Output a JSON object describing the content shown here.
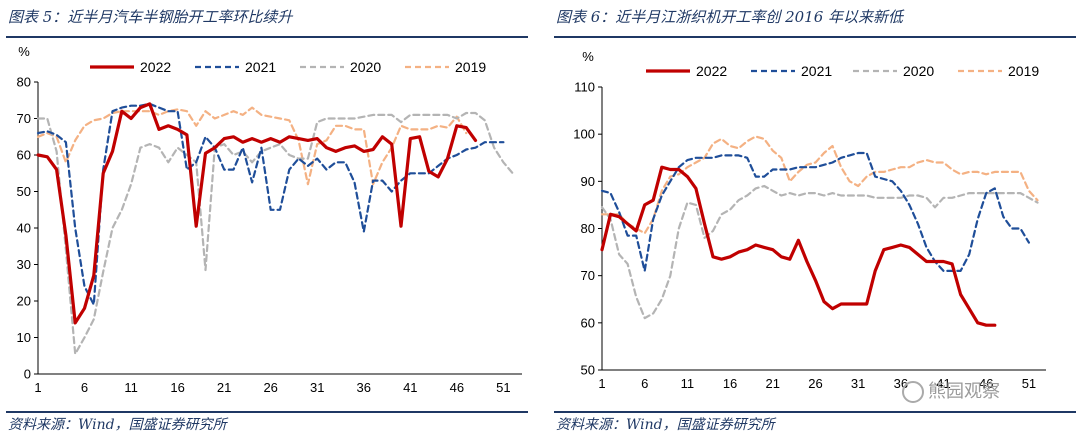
{
  "watermark": "熊园观察",
  "chart_data": [
    {
      "type": "line",
      "title": "图表 5：近半月汽车半钢胎开工率环比续升",
      "source": "资料来源：Wind，国盛证券研究所",
      "ylabel": "%",
      "ylim": [
        0,
        80
      ],
      "yticks": [
        0,
        10,
        20,
        30,
        40,
        50,
        60,
        70,
        80
      ],
      "xlim": [
        1,
        53
      ],
      "xticks": [
        1,
        6,
        11,
        16,
        21,
        26,
        31,
        36,
        41,
        46,
        51
      ],
      "series": [
        {
          "name": "2022",
          "color": "#c00000",
          "dash": "solid",
          "x": [
            1,
            2,
            3,
            4,
            5,
            6,
            7,
            8,
            9,
            10,
            11,
            12,
            13,
            14,
            15,
            16,
            17,
            18,
            19,
            20,
            21,
            22,
            23,
            24,
            25,
            26,
            27,
            28,
            29,
            30,
            31,
            32,
            33,
            34,
            35,
            36,
            37,
            38,
            39,
            40,
            41,
            42,
            43,
            44,
            45,
            46,
            47,
            48
          ],
          "y": [
            60,
            59.5,
            56,
            38,
            14,
            18,
            27,
            55,
            61,
            72,
            70,
            73,
            74,
            67,
            68,
            67,
            65.5,
            40.5,
            60.5,
            62,
            64.5,
            65,
            63.5,
            64.5,
            63.5,
            64.5,
            63.5,
            65,
            64.5,
            64,
            64.5,
            62,
            61,
            62,
            62.5,
            61,
            61.5,
            65,
            63,
            40.5,
            64.5,
            65,
            55.5,
            54,
            59,
            68,
            67.5,
            64
          ]
        },
        {
          "name": "2021",
          "color": "#1f4e99",
          "dash": "6,4",
          "x": [
            1,
            2,
            3,
            4,
            5,
            6,
            7,
            8,
            9,
            10,
            11,
            12,
            13,
            14,
            15,
            16,
            17,
            18,
            19,
            20,
            21,
            22,
            23,
            24,
            25,
            26,
            27,
            28,
            29,
            30,
            31,
            32,
            33,
            34,
            35,
            36,
            37,
            38,
            39,
            40,
            41,
            42,
            43,
            44,
            45,
            46,
            47,
            48,
            49,
            50,
            51
          ],
          "y": [
            66,
            66.5,
            65.5,
            63.5,
            40,
            24,
            19,
            56,
            72,
            73,
            73.5,
            73.5,
            74,
            73,
            72,
            72,
            56,
            58,
            65,
            62,
            56,
            56,
            62,
            52.5,
            62,
            45,
            45,
            56,
            59,
            57,
            59,
            56,
            58,
            58,
            52.5,
            39,
            53,
            53,
            50,
            53,
            55,
            55,
            55,
            57,
            59,
            60,
            61.5,
            62,
            63.5,
            63.5,
            63.5
          ]
        },
        {
          "name": "2020",
          "color": "#b4b4b4",
          "dash": "6,4",
          "x": [
            1,
            2,
            3,
            4,
            5,
            6,
            7,
            8,
            9,
            10,
            11,
            12,
            13,
            14,
            15,
            16,
            17,
            18,
            19,
            20,
            21,
            22,
            23,
            24,
            25,
            26,
            27,
            28,
            29,
            30,
            31,
            32,
            33,
            34,
            35,
            36,
            37,
            38,
            39,
            40,
            41,
            42,
            43,
            44,
            45,
            46,
            47,
            48,
            49,
            50,
            51,
            52
          ],
          "y": [
            70,
            70,
            61,
            34,
            5.5,
            10,
            15,
            28,
            40,
            45,
            52,
            62,
            63,
            62,
            58,
            62,
            60,
            58,
            28.5,
            62,
            63,
            60,
            61,
            58,
            61,
            62,
            63,
            60,
            59,
            59,
            69,
            70,
            70,
            70,
            70,
            70.5,
            71,
            71,
            71,
            69,
            71,
            71,
            71,
            71,
            71,
            70,
            71.5,
            71.5,
            69.5,
            62,
            58,
            55
          ]
        },
        {
          "name": "2019",
          "color": "#f4b183",
          "dash": "6,4",
          "x": [
            1,
            2,
            3,
            4,
            5,
            6,
            7,
            8,
            9,
            10,
            11,
            12,
            13,
            14,
            15,
            16,
            17,
            18,
            19,
            20,
            21,
            22,
            23,
            24,
            25,
            26,
            27,
            28,
            29,
            30,
            31,
            32,
            33,
            34,
            35,
            36,
            37,
            38,
            39,
            40,
            41,
            42,
            43,
            44,
            45,
            46,
            47
          ],
          "y": [
            65,
            66,
            65,
            58,
            64,
            68,
            69.5,
            70,
            71.5,
            72,
            72,
            72,
            72,
            71,
            72,
            72.5,
            72,
            68,
            72,
            70,
            71,
            72,
            71,
            73,
            71,
            70.5,
            70,
            69.5,
            64,
            52,
            63,
            64,
            68,
            68,
            67,
            67,
            52,
            58,
            62,
            68,
            67,
            67,
            67,
            68,
            67.5,
            70.5,
            66
          ]
        }
      ]
    },
    {
      "type": "line",
      "title": "图表 6：近半月江浙织机开工率创 2016 年以来新低",
      "source": "资料来源：Wind，国盛证券研究所",
      "ylabel": "%",
      "ylim": [
        50,
        110
      ],
      "yticks": [
        50,
        60,
        70,
        80,
        90,
        100,
        110
      ],
      "xlim": [
        1,
        53
      ],
      "xticks": [
        1,
        6,
        11,
        16,
        21,
        26,
        31,
        36,
        41,
        46,
        51
      ],
      "series": [
        {
          "name": "2022",
          "color": "#c00000",
          "dash": "solid",
          "x": [
            1,
            2,
            3,
            4,
            5,
            6,
            7,
            8,
            9,
            10,
            11,
            12,
            13,
            14,
            15,
            16,
            17,
            18,
            19,
            20,
            21,
            22,
            23,
            24,
            25,
            26,
            27,
            28,
            29,
            30,
            31,
            32,
            33,
            34,
            35,
            36,
            37,
            38,
            39,
            40,
            41,
            42,
            43,
            44,
            45,
            46,
            47
          ],
          "y": [
            75.5,
            83,
            82.5,
            81,
            79.5,
            85,
            86,
            93,
            92.5,
            92.5,
            91,
            88.5,
            81,
            74,
            73.5,
            74,
            75,
            75.5,
            76.5,
            76,
            75.5,
            74,
            73.5,
            77.5,
            73,
            69,
            64.5,
            63,
            64,
            64,
            64,
            64,
            71,
            75.5,
            76,
            76.5,
            76,
            74.5,
            73,
            73,
            73,
            72.5,
            66,
            63,
            60,
            59.5,
            59.5
          ]
        },
        {
          "name": "2021",
          "color": "#1f4e99",
          "dash": "6,4",
          "x": [
            1,
            2,
            3,
            4,
            5,
            6,
            7,
            8,
            9,
            10,
            11,
            12,
            13,
            14,
            15,
            16,
            17,
            18,
            19,
            20,
            21,
            22,
            23,
            24,
            25,
            26,
            27,
            28,
            29,
            30,
            31,
            32,
            33,
            34,
            35,
            36,
            37,
            38,
            39,
            40,
            41,
            42,
            43,
            44,
            45,
            46,
            47,
            48,
            49,
            50,
            51
          ],
          "y": [
            88,
            87.5,
            83.5,
            78.5,
            78.5,
            71,
            82,
            87,
            90,
            93,
            94.5,
            95,
            95,
            95,
            95.5,
            95.5,
            95.5,
            95,
            91,
            91,
            92.5,
            92.5,
            92.5,
            93,
            93,
            93,
            93.5,
            94,
            95,
            95.5,
            96,
            96,
            91,
            90.5,
            90,
            88,
            85,
            81,
            76,
            73,
            71,
            71,
            71,
            74.5,
            82,
            87.5,
            88.5,
            82.5,
            80,
            80,
            77
          ]
        },
        {
          "name": "2020",
          "color": "#b4b4b4",
          "dash": "6,4",
          "x": [
            1,
            2,
            3,
            4,
            5,
            6,
            7,
            8,
            9,
            10,
            11,
            12,
            13,
            14,
            15,
            16,
            17,
            18,
            19,
            20,
            21,
            22,
            23,
            24,
            25,
            26,
            27,
            28,
            29,
            30,
            31,
            32,
            33,
            34,
            35,
            36,
            37,
            38,
            39,
            40,
            41,
            42,
            43,
            44,
            45,
            46,
            47,
            48,
            49,
            50,
            51,
            52
          ],
          "y": [
            84.5,
            82,
            74.5,
            72.5,
            65.5,
            61,
            62,
            65,
            70,
            80,
            85.5,
            85,
            78,
            79.5,
            83,
            84,
            86,
            87,
            88.5,
            89,
            88,
            87,
            87.5,
            87,
            87.5,
            87.5,
            87,
            87.5,
            87,
            87,
            87,
            87,
            86.5,
            86.5,
            86.5,
            86.5,
            87,
            87,
            86.5,
            84.5,
            86.5,
            86.5,
            87,
            87.5,
            87.5,
            87.5,
            87.5,
            87.5,
            87.5,
            87.5,
            86.5,
            85.5
          ]
        },
        {
          "name": "2019",
          "color": "#f4b183",
          "dash": "6,4",
          "x": [
            1,
            2,
            3,
            4,
            5,
            6,
            7,
            8,
            9,
            10,
            11,
            12,
            13,
            14,
            15,
            16,
            17,
            18,
            19,
            20,
            21,
            22,
            23,
            24,
            25,
            26,
            27,
            28,
            29,
            30,
            31,
            32,
            33,
            34,
            35,
            36,
            37,
            38,
            39,
            40,
            41,
            42,
            43,
            44,
            45,
            46,
            47,
            48,
            49,
            50,
            51,
            52
          ],
          "y": [
            83,
            83,
            83,
            81,
            80,
            79,
            82,
            88,
            91,
            91.5,
            93,
            94,
            95,
            98,
            99,
            97.5,
            97,
            98.5,
            99.5,
            99,
            96.5,
            95,
            90,
            92,
            93.5,
            94,
            96,
            97.5,
            93,
            90,
            89,
            91,
            92,
            92,
            92.5,
            93,
            93,
            94,
            94.5,
            94,
            94,
            92.5,
            91.5,
            92,
            92,
            91.5,
            92,
            92,
            92,
            92,
            88,
            86
          ]
        }
      ]
    }
  ]
}
